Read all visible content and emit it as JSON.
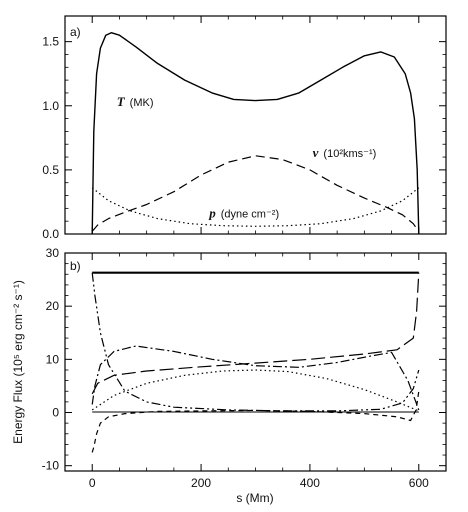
{
  "chart_data": [
    {
      "type": "line",
      "panel_label": "a)",
      "xlim": [
        -50,
        650
      ],
      "ylim": [
        0,
        1.7
      ],
      "yticks": [
        "0.0",
        "0.5",
        "1.0",
        "1.5"
      ],
      "ytick_values": [
        0,
        0.5,
        1.0,
        1.5
      ],
      "series": [
        {
          "style": "solid",
          "x": [
            0,
            3,
            8,
            15,
            25,
            35,
            50,
            80,
            120,
            170,
            220,
            260,
            300,
            340,
            380,
            420,
            460,
            500,
            530,
            555,
            575,
            585,
            592,
            597,
            600
          ],
          "y": [
            0.0,
            0.8,
            1.25,
            1.45,
            1.55,
            1.57,
            1.55,
            1.46,
            1.33,
            1.2,
            1.1,
            1.05,
            1.04,
            1.05,
            1.1,
            1.2,
            1.3,
            1.39,
            1.42,
            1.38,
            1.25,
            1.1,
            0.9,
            0.5,
            0.0
          ]
        },
        {
          "style": "dashed",
          "x": [
            0,
            10,
            30,
            60,
            100,
            150,
            200,
            250,
            300,
            350,
            400,
            450,
            500,
            540,
            570,
            590,
            600
          ],
          "y": [
            0.02,
            0.07,
            0.12,
            0.17,
            0.23,
            0.33,
            0.46,
            0.56,
            0.61,
            0.58,
            0.5,
            0.38,
            0.28,
            0.21,
            0.15,
            0.08,
            0.02
          ]
        },
        {
          "style": "dotted",
          "x": [
            0,
            30,
            70,
            120,
            180,
            240,
            300,
            360,
            420,
            480,
            530,
            570,
            600
          ],
          "y": [
            0.36,
            0.26,
            0.18,
            0.12,
            0.08,
            0.065,
            0.06,
            0.065,
            0.08,
            0.12,
            0.18,
            0.26,
            0.36
          ]
        }
      ],
      "annotations": [
        {
          "italic": "T",
          "text": "(MK)",
          "x": 45,
          "y": 1.0
        },
        {
          "italic": "v",
          "text": "(10²kms⁻¹)",
          "x": 405,
          "y": 0.6
        },
        {
          "italic": "p",
          "text": "(dyne cm⁻²)",
          "x": 215,
          "y": 0.13
        }
      ]
    },
    {
      "type": "line",
      "panel_label": "b)",
      "xlim": [
        -50,
        650
      ],
      "ylim": [
        -11,
        30
      ],
      "xticks": [
        "0",
        "200",
        "400",
        "600"
      ],
      "xtick_values": [
        0,
        200,
        400,
        600
      ],
      "yticks": [
        "-10",
        "0",
        "10",
        "20",
        "30"
      ],
      "ytick_values": [
        -10,
        0,
        10,
        20,
        30
      ],
      "xlabel": "s (Mm)",
      "ylabel": "Energy Flux (10⁵ erg cm⁻² s⁻¹)",
      "series": [
        {
          "style": "thick-solid",
          "x": [
            0,
            600
          ],
          "y": [
            26.3,
            26.3
          ]
        },
        {
          "style": "long-dash",
          "x": [
            0,
            10,
            40,
            100,
            200,
            300,
            400,
            500,
            560,
            590,
            596,
            600
          ],
          "y": [
            3.5,
            5.5,
            7.0,
            7.8,
            8.6,
            9.3,
            10.0,
            11.0,
            11.8,
            14.0,
            19.0,
            26.3
          ]
        },
        {
          "style": "dash-dot",
          "x": [
            0,
            5,
            15,
            40,
            80,
            150,
            220,
            300,
            380,
            450,
            510,
            550,
            580,
            600
          ],
          "y": [
            1.5,
            5.0,
            9.0,
            11.5,
            12.5,
            11.5,
            10.0,
            8.8,
            8.5,
            9.4,
            10.6,
            11.3,
            6.0,
            0.5
          ]
        },
        {
          "style": "dash-dot-dot",
          "x": [
            0,
            5,
            15,
            30,
            60,
            100,
            150,
            250,
            350,
            450,
            530,
            570,
            590,
            600
          ],
          "y": [
            26.3,
            22.0,
            15.0,
            9.0,
            4.0,
            2.0,
            1.0,
            0.5,
            0.3,
            0.3,
            0.6,
            1.8,
            4.5,
            8.0
          ]
        },
        {
          "style": "dotted",
          "x": [
            0,
            40,
            100,
            170,
            240,
            300,
            360,
            430,
            500,
            560,
            600
          ],
          "y": [
            0.5,
            3.2,
            5.5,
            7.0,
            7.8,
            8.0,
            7.7,
            6.4,
            4.3,
            2.0,
            0.3
          ]
        },
        {
          "style": "short-dash",
          "x": [
            0,
            3,
            8,
            15,
            30,
            60,
            120,
            200,
            300,
            400,
            500,
            560,
            585,
            595,
            600
          ],
          "y": [
            -7.5,
            -6.5,
            -4.0,
            -2.0,
            -0.8,
            -0.2,
            0.2,
            0.3,
            0.4,
            0.2,
            -0.2,
            -0.8,
            -1.5,
            0.5,
            4.0
          ]
        },
        {
          "style": "thin-solid",
          "x": [
            0,
            600
          ],
          "y": [
            0.1,
            0.1
          ]
        }
      ]
    }
  ]
}
